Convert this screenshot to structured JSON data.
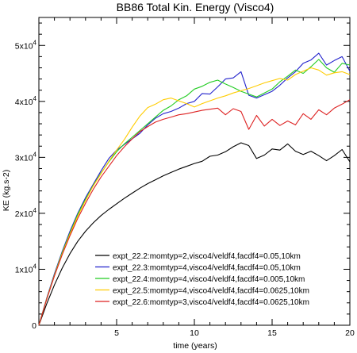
{
  "chart_data": {
    "type": "line",
    "title": "BB86 Total Kin. Energy (Visco4)",
    "xlabel": "time (years)",
    "ylabel": "KE (kg.s-2)",
    "xlim": [
      0,
      20
    ],
    "ylim": [
      0,
      55000
    ],
    "xticks": [
      5,
      10,
      15,
      20
    ],
    "xtick_labels": [
      "5",
      "10",
      "15",
      "20"
    ],
    "yticks": [
      0,
      10000,
      20000,
      30000,
      40000,
      50000
    ],
    "ytick_labels": [
      {
        "base": "0",
        "exp": ""
      },
      {
        "base": "1x10",
        "exp": "4"
      },
      {
        "base": "2x10",
        "exp": "4"
      },
      {
        "base": "3x10",
        "exp": "4"
      },
      {
        "base": "4x10",
        "exp": "4"
      },
      {
        "base": "5x10",
        "exp": "4"
      }
    ],
    "grid": false,
    "legend_position": "lower-right",
    "series": [
      {
        "name": "expt_22.2:momtyp=2,visco4/veldf4,facdf4=0.05,10km",
        "color": "#000000",
        "x": [
          0,
          0.5,
          1,
          1.5,
          2,
          2.5,
          3,
          3.5,
          4,
          4.5,
          5,
          5.5,
          6,
          6.5,
          7,
          7.5,
          8,
          8.5,
          9,
          9.5,
          10,
          10.5,
          11,
          11.5,
          12,
          12.5,
          13,
          13.5,
          14,
          14.5,
          15,
          15.5,
          16,
          16.5,
          17,
          17.5,
          18,
          18.5,
          19,
          19.5,
          20
        ],
        "y": [
          0,
          3800,
          7200,
          10200,
          12800,
          15000,
          16800,
          18300,
          19600,
          20700,
          21700,
          22700,
          23600,
          24500,
          25300,
          26000,
          26700,
          27300,
          27900,
          28400,
          28900,
          29300,
          30200,
          30400,
          31000,
          31900,
          32600,
          32100,
          29800,
          30400,
          31500,
          31300,
          32400,
          31100,
          30500,
          31100,
          30300,
          29400,
          30300,
          31400,
          29200
        ]
      },
      {
        "name": "expt_22.3:momtyp=4,visco4/veldf4,facdf4=0.05,10km",
        "color": "#2222cc",
        "x": [
          0,
          0.5,
          1,
          1.5,
          2,
          2.5,
          3,
          3.5,
          4,
          4.5,
          5,
          5.5,
          6,
          6.5,
          7,
          7.5,
          8,
          8.5,
          9,
          9.5,
          10,
          10.5,
          11,
          11.5,
          12,
          12.5,
          13,
          13.5,
          14,
          14.5,
          15,
          15.5,
          16,
          16.5,
          17,
          17.5,
          18,
          18.5,
          19,
          19.5,
          20
        ],
        "y": [
          0,
          4800,
          9200,
          13200,
          16800,
          20000,
          22800,
          25200,
          27600,
          29800,
          31300,
          32300,
          33300,
          34300,
          35800,
          37000,
          37800,
          38200,
          38800,
          39600,
          40000,
          41400,
          41300,
          42600,
          44000,
          44200,
          45300,
          41100,
          40600,
          41200,
          41800,
          42900,
          44200,
          45300,
          46800,
          47400,
          48600,
          46500,
          47300,
          48000,
          45400
        ]
      },
      {
        "name": "expt_22.4:momtyp=4,visco4/veldf4,facdf4=0.005,10km",
        "color": "#22cc22",
        "x": [
          0,
          0.5,
          1,
          1.5,
          2,
          2.5,
          3,
          3.5,
          4,
          4.5,
          5,
          5.5,
          6,
          6.5,
          7,
          7.5,
          8,
          8.5,
          9,
          9.5,
          10,
          10.5,
          11,
          11.5,
          12,
          12.5,
          13,
          13.5,
          14,
          14.5,
          15,
          15.5,
          16,
          16.5,
          17,
          17.5,
          18,
          18.5,
          19,
          19.5,
          20
        ],
        "y": [
          0,
          4700,
          9000,
          13000,
          16500,
          19800,
          22500,
          25000,
          27200,
          29200,
          31000,
          32400,
          33600,
          34800,
          36000,
          37200,
          38400,
          39200,
          40300,
          41000,
          42200,
          42700,
          43400,
          43800,
          43100,
          42500,
          41800,
          41300,
          40800,
          41500,
          42200,
          43500,
          44500,
          45600,
          45000,
          46200,
          47500,
          46000,
          45200,
          46800,
          46500
        ]
      },
      {
        "name": "expt_22.5:momtyp=4,visco4/veldf4,facdf4=0.0625,10km",
        "color": "#ffcc00",
        "x": [
          0,
          0.5,
          1,
          1.5,
          2,
          2.5,
          3,
          3.5,
          4,
          4.5,
          5,
          5.5,
          6,
          6.5,
          7,
          7.5,
          8,
          8.5,
          9,
          9.5,
          10,
          10.5,
          11,
          11.5,
          12,
          12.5,
          13,
          13.5,
          14,
          14.5,
          15,
          15.5,
          16,
          16.5,
          17,
          17.5,
          18,
          18.5,
          19,
          19.5,
          20
        ],
        "y": [
          0,
          4650,
          8900,
          12800,
          16300,
          19500,
          22300,
          24900,
          27100,
          29300,
          31300,
          33200,
          35400,
          37400,
          38900,
          39500,
          40300,
          40600,
          40100,
          39600,
          39000,
          39600,
          40100,
          40600,
          41000,
          41500,
          41900,
          42300,
          42800,
          43300,
          43700,
          44100,
          43800,
          44800,
          45400,
          46000,
          45600,
          44700,
          45100,
          45300,
          44800
        ]
      },
      {
        "name": "expt_22.6:momtyp=3,visco4/veldf4,facdf4=0.0625,10km",
        "color": "#dd2222",
        "x": [
          0,
          0.5,
          1,
          1.5,
          2,
          2.5,
          3,
          3.5,
          4,
          4.5,
          5,
          5.5,
          6,
          6.5,
          7,
          7.5,
          8,
          8.5,
          9,
          9.5,
          10,
          10.5,
          11,
          11.5,
          12,
          12.5,
          13,
          13.5,
          14,
          14.5,
          15,
          15.5,
          16,
          16.5,
          17,
          17.5,
          18,
          18.5,
          19,
          19.5,
          20
        ],
        "y": [
          0,
          4600,
          8800,
          12600,
          16000,
          19100,
          21800,
          24300,
          26500,
          28400,
          30300,
          31900,
          33300,
          34600,
          35500,
          36300,
          36800,
          37200,
          37600,
          37800,
          38100,
          38400,
          38600,
          38800,
          37600,
          38700,
          38200,
          35000,
          37500,
          35600,
          36800,
          35700,
          36500,
          35800,
          37800,
          36800,
          38500,
          37600,
          38800,
          39500,
          40300
        ]
      }
    ]
  }
}
